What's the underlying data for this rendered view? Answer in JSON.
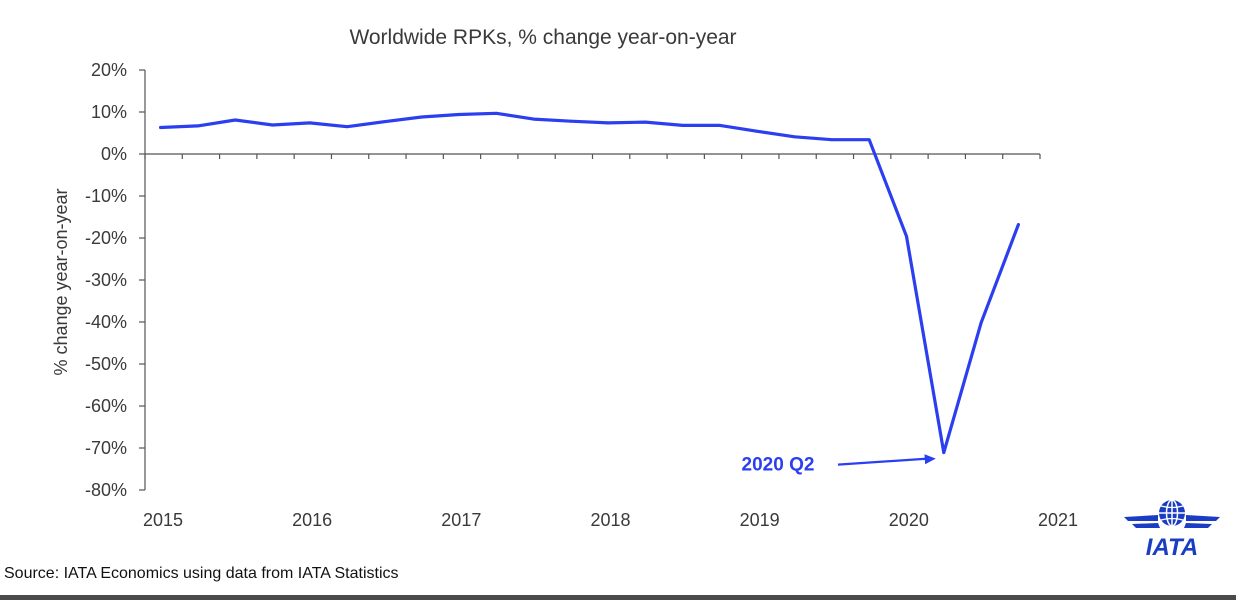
{
  "chart_data": {
    "type": "line",
    "title": "Worldwide RPKs, % change year-on-year",
    "ylabel": "% change year-on-year",
    "xlabel": "",
    "ylim": [
      -80,
      20
    ],
    "y_ticks": [
      20,
      10,
      0,
      -10,
      -20,
      -30,
      -40,
      -50,
      -60,
      -70,
      -80
    ],
    "y_tick_labels": [
      "20%",
      "10%",
      "0%",
      "-10%",
      "-20%",
      "-30%",
      "-40%",
      "-50%",
      "-60%",
      "-70%",
      "-80%"
    ],
    "x_tick_labels": [
      "2015",
      "2016",
      "2017",
      "2018",
      "2019",
      "2020",
      "2021"
    ],
    "x_range": [
      2015,
      2021
    ],
    "grid": false,
    "legend": "none",
    "series": [
      {
        "color": "#2b3ff0",
        "points": [
          {
            "x": "2015 Q1",
            "y": 6.3
          },
          {
            "x": "2015 Q2",
            "y": 6.7
          },
          {
            "x": "2015 Q3",
            "y": 8.1
          },
          {
            "x": "2015 Q4",
            "y": 6.9
          },
          {
            "x": "2016 Q1",
            "y": 7.4
          },
          {
            "x": "2016 Q2",
            "y": 6.5
          },
          {
            "x": "2016 Q3",
            "y": 7.7
          },
          {
            "x": "2016 Q4",
            "y": 8.8
          },
          {
            "x": "2017 Q1",
            "y": 9.4
          },
          {
            "x": "2017 Q2",
            "y": 9.7
          },
          {
            "x": "2017 Q3",
            "y": 8.3
          },
          {
            "x": "2017 Q4",
            "y": 7.8
          },
          {
            "x": "2018 Q1",
            "y": 7.4
          },
          {
            "x": "2018 Q2",
            "y": 7.6
          },
          {
            "x": "2018 Q3",
            "y": 6.8
          },
          {
            "x": "2018 Q4",
            "y": 6.8
          },
          {
            "x": "2019 Q1",
            "y": 5.4
          },
          {
            "x": "2019 Q2",
            "y": 4.1
          },
          {
            "x": "2019 Q3",
            "y": 3.4
          },
          {
            "x": "2019 Q4",
            "y": 3.4
          },
          {
            "x": "2020 Q1",
            "y": -19.6
          },
          {
            "x": "2020 Q2",
            "y": -71.1
          },
          {
            "x": "2020 Q3",
            "y": -40.2
          },
          {
            "x": "2020 Q4",
            "y": -16.8
          }
        ]
      }
    ],
    "annotation": {
      "text": "2020 Q2",
      "target_x": "2020 Q2",
      "target_y": -71.1,
      "color": "#2b3ff0"
    }
  },
  "colors": {
    "line": "#2b3ff0",
    "text": "#3a3a3a",
    "axis": "#555555",
    "logo": "#1b3dc4"
  },
  "logo": {
    "text": "IATA",
    "icon": "globe-wings-icon"
  },
  "source": "Source: IATA Economics using data from IATA Statistics"
}
